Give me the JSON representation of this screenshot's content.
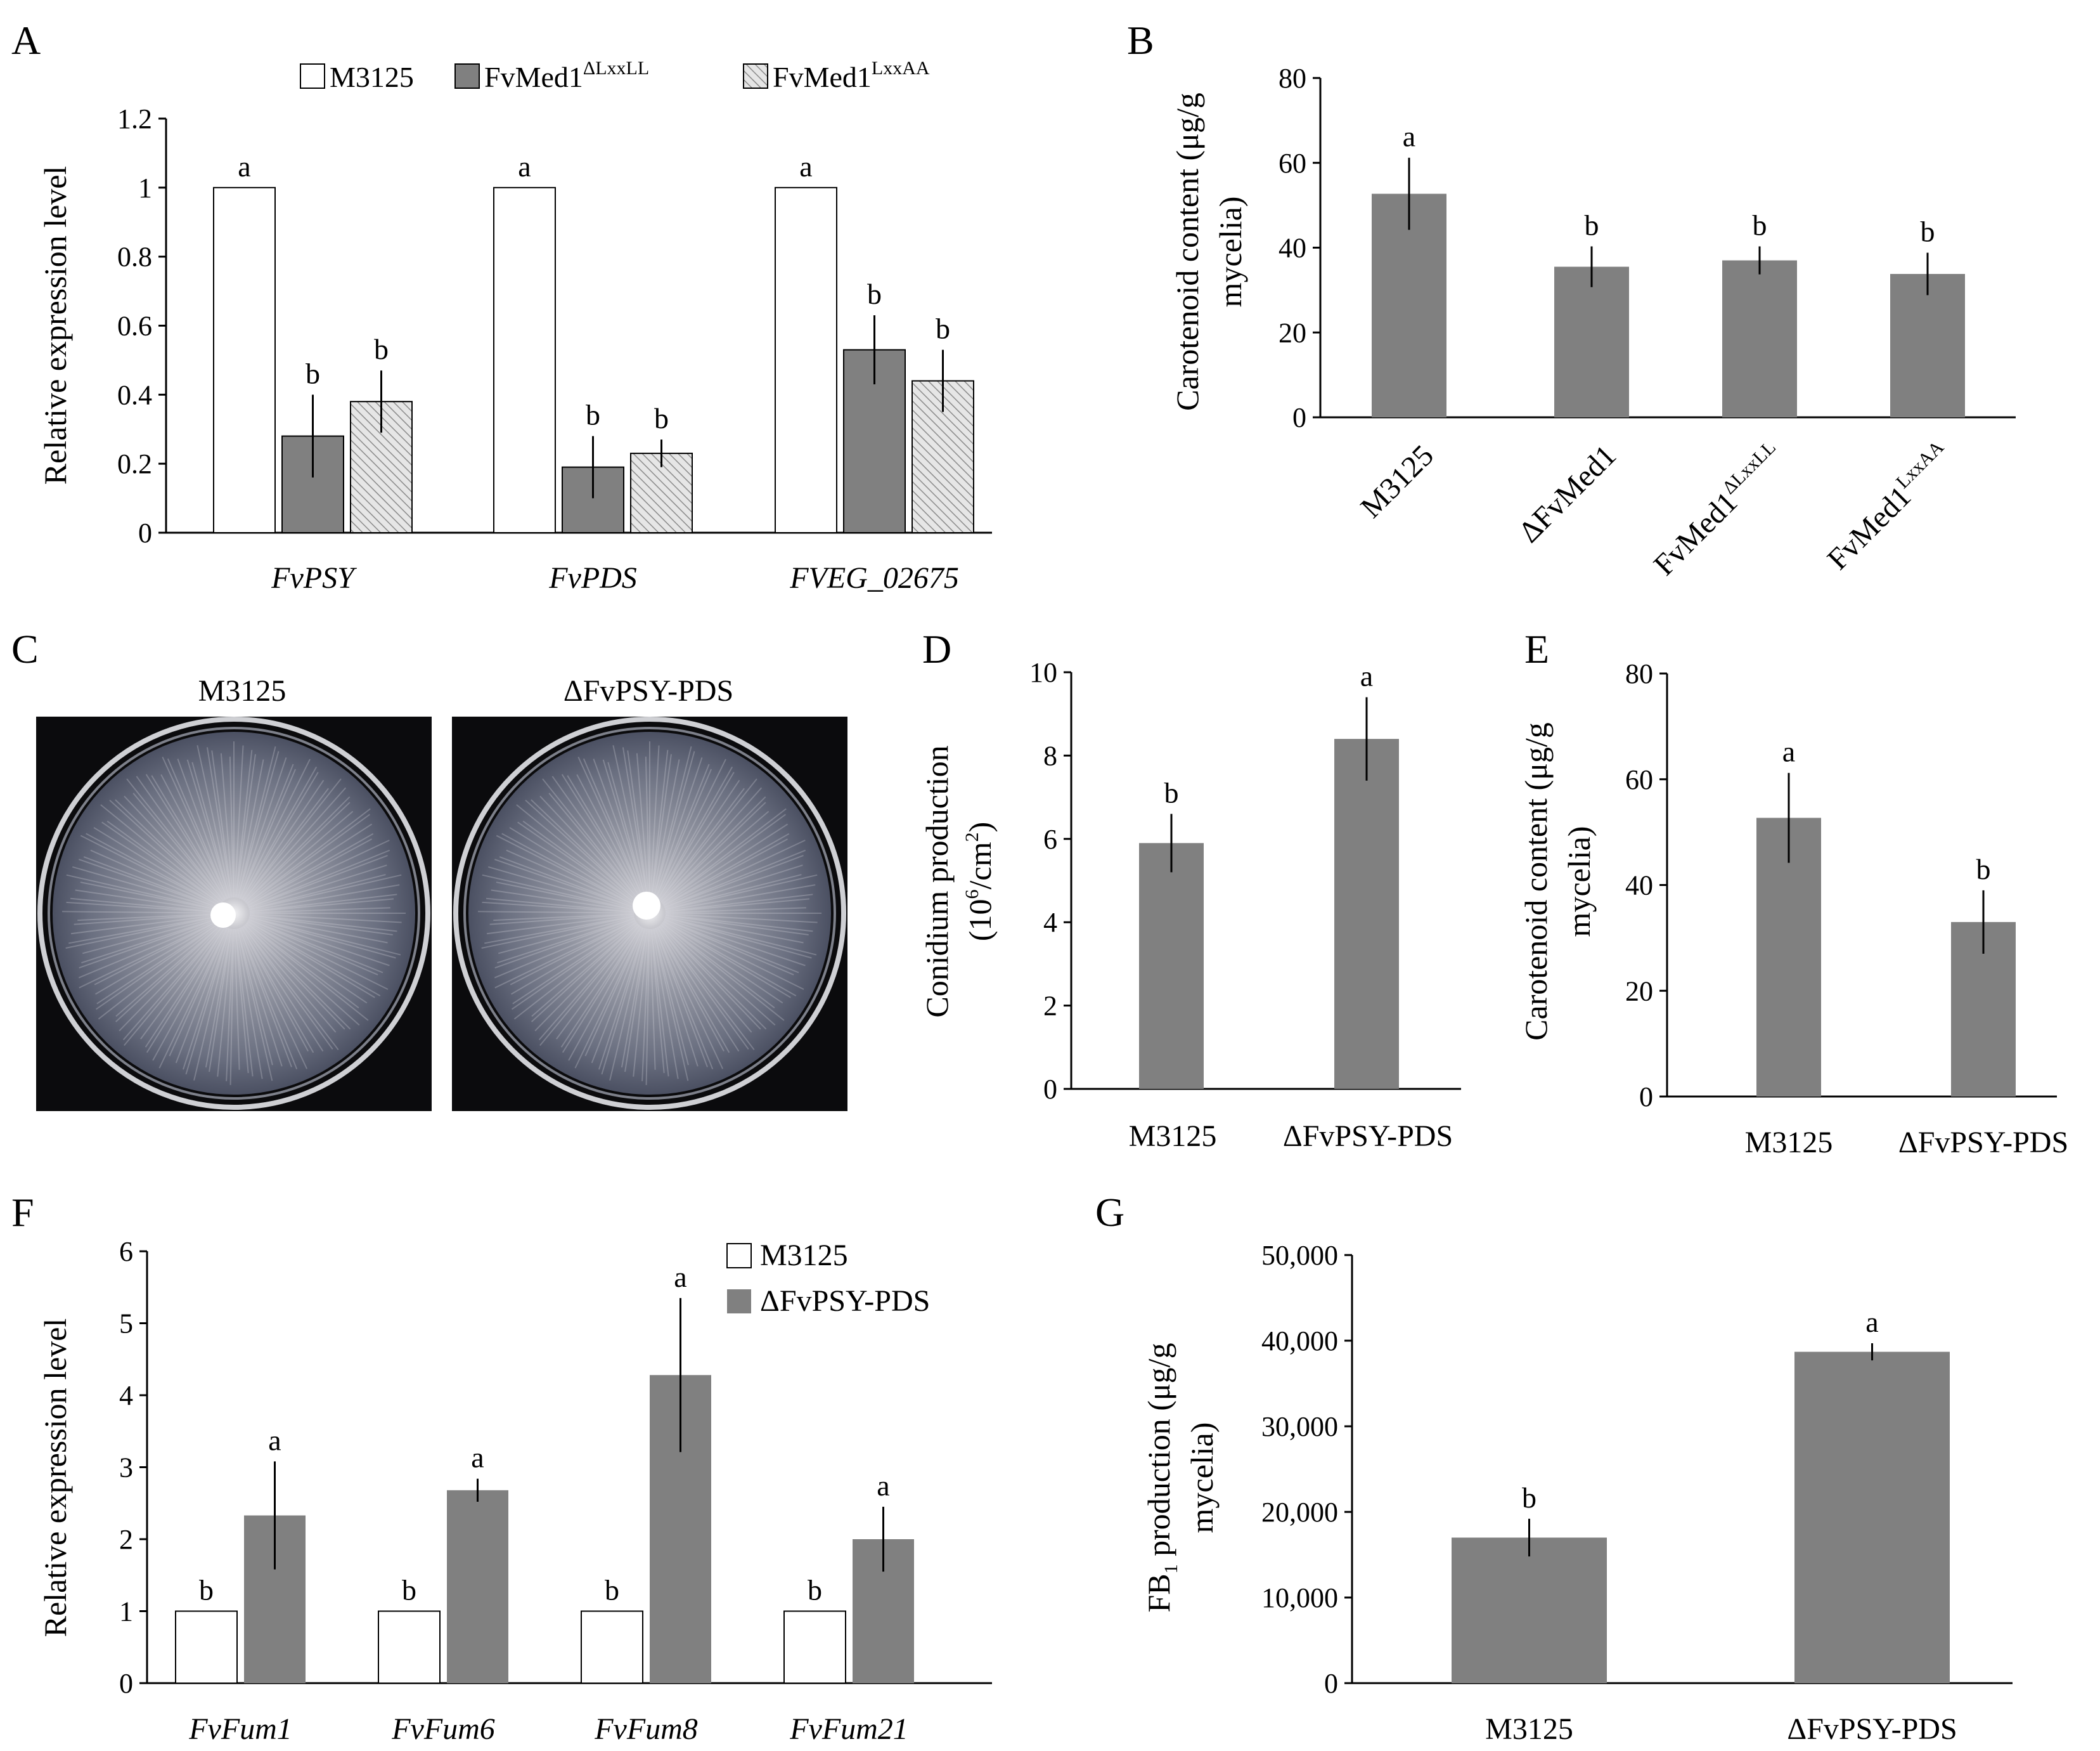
{
  "panel_labels": {
    "a": "A",
    "b": "B",
    "c": "C",
    "d": "D",
    "e": "E",
    "f": "F",
    "g": "G"
  },
  "colors": {
    "white_bar": "#ffffff",
    "gray_bar": "#808080",
    "hatch_bg": "#e6e6e6",
    "hatch_line": "#8a8a8a",
    "photo_bg": "#0b0b0d"
  },
  "photos": {
    "left_title": "M3125",
    "right_title": "ΔFvPSY-PDS"
  },
  "chart_data": [
    {
      "id": "A",
      "type": "bar",
      "title": "",
      "xlabel": "",
      "ylabel": "Relative expression level",
      "ylim": [
        0,
        1.2
      ],
      "yticks": [
        "0",
        "0.2",
        "0.4",
        "0.6",
        "0.8",
        "1",
        "1.2"
      ],
      "categories": [
        "FvPSY",
        "FvPDS",
        "FVEG_02675"
      ],
      "legend": [
        "M3125",
        "FvMed1",
        "FvMed1"
      ],
      "legend_sup": [
        "",
        "ΔLxxLL",
        "LxxAA"
      ],
      "series": [
        {
          "name": "M3125",
          "style": "white",
          "values": [
            1,
            1,
            1
          ],
          "errors": [
            0,
            0,
            0
          ],
          "letters": [
            "a",
            "a",
            "a"
          ]
        },
        {
          "name": "FvMed1ΔLxxLL",
          "style": "gray",
          "values": [
            0.28,
            0.19,
            0.53
          ],
          "errors": [
            0.12,
            0.09,
            0.1
          ],
          "letters": [
            "b",
            "b",
            "b"
          ]
        },
        {
          "name": "FvMed1LxxAA",
          "style": "hatch",
          "values": [
            0.38,
            0.23,
            0.44
          ],
          "errors": [
            0.09,
            0.04,
            0.09
          ],
          "letters": [
            "b",
            "b",
            "b"
          ]
        }
      ]
    },
    {
      "id": "B",
      "type": "bar",
      "title": "",
      "ylabel_lines": [
        "Carotenoid content (μg/g",
        "mycelia)"
      ],
      "ylim": [
        0,
        80
      ],
      "yticks": [
        "0",
        "20",
        "40",
        "60",
        "80"
      ],
      "categories": [
        "M3125",
        "ΔFvMed1",
        "FvMed1",
        "FvMed1"
      ],
      "category_sup": [
        "",
        "",
        "ΔLxxLL",
        "LxxAA"
      ],
      "values": [
        52.7,
        35.5,
        37,
        33.8
      ],
      "errors": [
        8.5,
        4.8,
        3.3,
        5
      ],
      "letters": [
        "a",
        "b",
        "b",
        "b"
      ]
    },
    {
      "id": "D",
      "type": "bar",
      "ylabel_line1": "Conidium production",
      "ylabel_line2_parts": [
        "(10",
        "6",
        "/cm",
        "2",
        ")"
      ],
      "ylim": [
        0,
        10
      ],
      "yticks": [
        "0",
        "2",
        "4",
        "6",
        "8",
        "10"
      ],
      "categories": [
        "M3125",
        "ΔFvPSY-PDS"
      ],
      "values": [
        5.9,
        8.4
      ],
      "errors": [
        0.7,
        1.0
      ],
      "letters": [
        "b",
        "a"
      ]
    },
    {
      "id": "E",
      "type": "bar",
      "ylabel_lines": [
        "Carotenoid content (μg/g",
        "mycelia)"
      ],
      "ylim": [
        0,
        80
      ],
      "yticks": [
        "0",
        "20",
        "40",
        "60",
        "80"
      ],
      "categories": [
        "M3125",
        "ΔFvPSY-PDS"
      ],
      "values": [
        52.7,
        33
      ],
      "errors": [
        8.5,
        6
      ],
      "letters": [
        "a",
        "b"
      ]
    },
    {
      "id": "F",
      "type": "bar",
      "ylabel": "Relative expression level",
      "ylim": [
        0,
        6
      ],
      "yticks": [
        "0",
        "1",
        "2",
        "3",
        "4",
        "5",
        "6"
      ],
      "categories": [
        "FvFum1",
        "FvFum6",
        "FvFum8",
        "FvFum21"
      ],
      "legend": [
        "M3125",
        "ΔFvPSY-PDS"
      ],
      "series": [
        {
          "name": "M3125",
          "style": "white",
          "values": [
            1,
            1,
            1,
            1
          ],
          "errors": [
            0,
            0,
            0,
            0
          ],
          "letters": [
            "b",
            "b",
            "b",
            "b"
          ]
        },
        {
          "name": "ΔFvPSY-PDS",
          "style": "gray",
          "values": [
            2.33,
            2.68,
            4.28,
            2.0
          ],
          "errors": [
            0.75,
            0.16,
            1.07,
            0.45
          ],
          "letters": [
            "a",
            "a",
            "a",
            "a"
          ]
        }
      ]
    },
    {
      "id": "G",
      "type": "bar",
      "ylabel_line1_parts": [
        "FB",
        "1",
        " production (μg/g"
      ],
      "ylabel_line2": "mycelia)",
      "ylim": [
        0,
        50000
      ],
      "yticks": [
        "0",
        "10,000",
        "20,000",
        "30,000",
        "40,000",
        "50,000"
      ],
      "categories": [
        "M3125",
        "ΔFvPSY-PDS"
      ],
      "values": [
        17000,
        38700
      ],
      "errors": [
        2200,
        1000
      ],
      "letters": [
        "b",
        "a"
      ]
    }
  ]
}
